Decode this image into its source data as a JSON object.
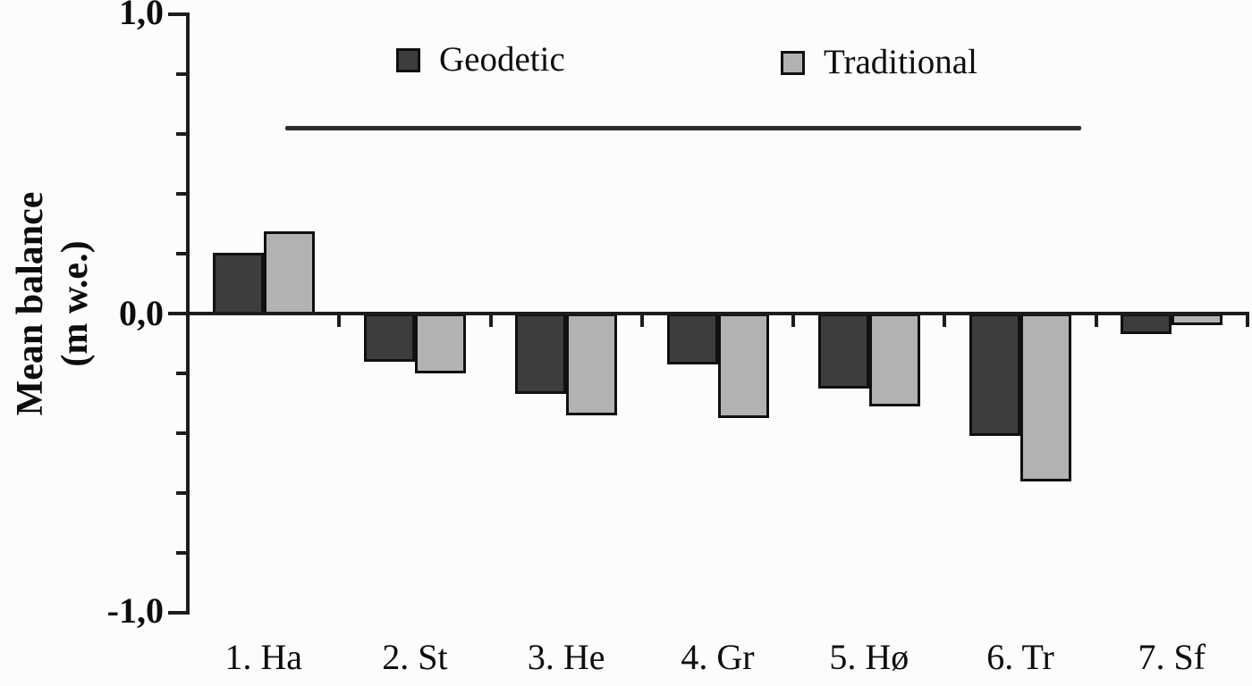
{
  "figure": {
    "background": "#fcfcfc",
    "y_axis_title_lines": [
      "Mean balance",
      "(m w.e.)"
    ],
    "y_tick_labels": [
      "1,0",
      "0,0",
      "-1,0"
    ]
  },
  "legend": {
    "items": [
      {
        "label": "Geodetic",
        "color": "#3d3d3d",
        "swatch": "dark-gray-square"
      },
      {
        "label": "Traditional",
        "color": "#b2b2b2",
        "swatch": "light-gray-square"
      }
    ]
  },
  "chart_data": {
    "type": "bar",
    "title": "",
    "categories": [
      "1. Ha",
      "2. St",
      "3. He",
      "4. Gr",
      "5. Hø",
      "6. Tr",
      "7. Sf"
    ],
    "series": [
      {
        "name": "Geodetic",
        "color": "#3d3d3d",
        "values": [
          0.21,
          -0.16,
          -0.27,
          -0.17,
          -0.25,
          -0.41,
          -0.07
        ]
      },
      {
        "name": "Traditional",
        "color": "#b2b2b2",
        "values": [
          0.28,
          -0.2,
          -0.34,
          -0.35,
          -0.31,
          -0.56,
          -0.04
        ]
      }
    ],
    "xlabel": "",
    "ylabel": "Mean balance (m w.e.)",
    "ylim": [
      -1.0,
      1.0
    ],
    "y_major_ticks": [
      1.0,
      0.0,
      -1.0
    ],
    "y_major_tick_labels": [
      "1,0",
      "0,0",
      "-1,0"
    ],
    "y_minor_tick_step": 0.2,
    "grid": false,
    "legend_position": "top-inside",
    "annotation_line": {
      "y_value": 0.62
    }
  }
}
